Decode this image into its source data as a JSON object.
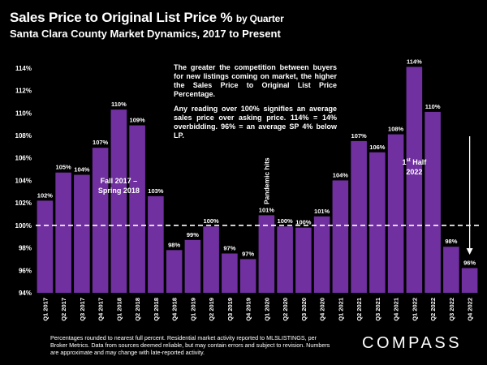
{
  "title_main": "Sales Price to Original List Price %",
  "title_by": "by Quarter",
  "subtitle": "Santa Clara County Market Dynamics, 2017 to Present",
  "note_1": "The greater the competition between buyers for new listings coming on market, the higher the Sales Price to Original List Price Percentage.",
  "note_2": "Any reading over 100% signifies an average sales price over asking price. 114% = 14% overbidding. 96% = an average SP 4% below LP.",
  "footer": "Percentages rounded to nearest full percent. Residential market activity reported to MLSLISTINGS, per Broker Metrics. Data from sources deemed reliable, but may contain errors and subject to revision. Numbers are approximate and may change with late-reported activity.",
  "logo": "COMPASS",
  "colors": {
    "bar": "#7030A0",
    "background": "#000000",
    "text": "#ffffff",
    "reference_line": "#ffffff"
  },
  "chart_data": {
    "type": "bar",
    "title": "Sales Price to Original List Price %",
    "categories": [
      "Q1 2017",
      "Q2 2017",
      "Q3 2017",
      "Q4 2017",
      "Q1 2018",
      "Q2 2018",
      "Q3 2018",
      "Q4 2018",
      "Q1 2019",
      "Q2 2019",
      "Q3 2019",
      "Q4 2019",
      "Q1 2020",
      "Q2 2020",
      "Q3 2020",
      "Q4 2020",
      "Q1 2021",
      "Q2 2021",
      "Q3 2021",
      "Q4 2021",
      "Q1 2022",
      "Q2 2022",
      "Q3 2022",
      "Q4 2022"
    ],
    "values": [
      102.2,
      104.7,
      104.5,
      106.9,
      110.3,
      108.9,
      102.6,
      97.8,
      98.7,
      99.9,
      97.5,
      97.0,
      100.9,
      99.9,
      99.8,
      100.8,
      104.0,
      107.5,
      106.5,
      108.1,
      114.1,
      110.1,
      98.1,
      96.2
    ],
    "data_labels": [
      "102%",
      "105%",
      "104%",
      "107%",
      "110%",
      "109%",
      "103%",
      "98%",
      "99%",
      "100%",
      "97%",
      "97%",
      "101%",
      "100%",
      "100%",
      "101%",
      "104%",
      "107%",
      "106%",
      "108%",
      "114%",
      "110%",
      "98%",
      "96%"
    ],
    "ylim": [
      94,
      115
    ],
    "yticks": [
      94,
      96,
      98,
      100,
      102,
      104,
      106,
      108,
      110,
      112,
      114
    ],
    "ytick_labels": [
      "94%",
      "96%",
      "98%",
      "100%",
      "102%",
      "104%",
      "106%",
      "108%",
      "110%",
      "112%",
      "114%"
    ],
    "reference_line": 100,
    "xlabel": "",
    "ylabel": "",
    "annotations": {
      "fall_2017": "Fall 2017 – Spring 2018",
      "pandemic": "Pandemic hits",
      "first_half_sup": "st",
      "first_half_1": "1",
      "first_half_2": "Half",
      "first_half_3": "2022"
    }
  }
}
